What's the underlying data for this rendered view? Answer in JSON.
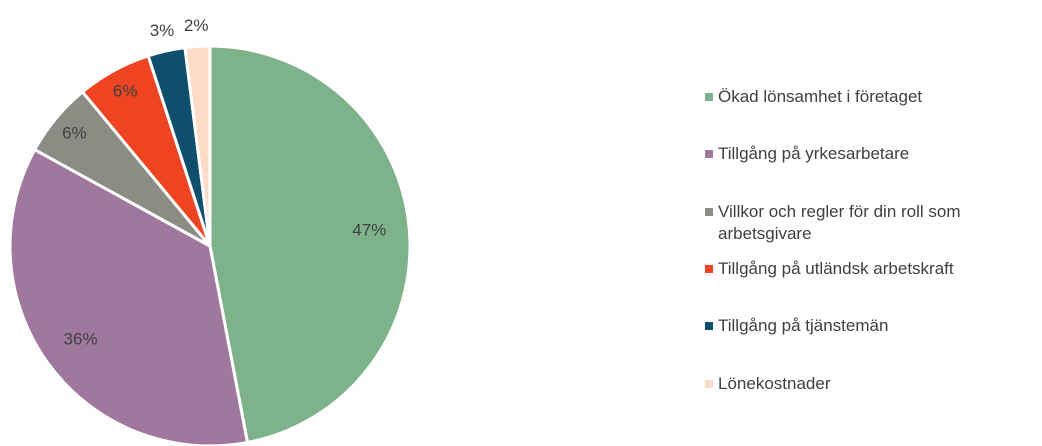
{
  "chart_data": {
    "type": "pie",
    "categories": [
      "Ökad lönsamhet i företaget",
      "Tillgång på yrkesarbetare",
      "Villkor och regler för din roll som arbetsgivare",
      "Tillgång på utländsk arbetskraft",
      "Tillgång på tjänstemän",
      "Lönekostnader"
    ],
    "values": [
      47,
      36,
      6,
      6,
      3,
      2
    ],
    "value_labels": [
      "47%",
      "36%",
      "6%",
      "6%",
      "3%",
      "2%"
    ],
    "colors": [
      "#7db28a",
      "#a0789e",
      "#8c8c85",
      "#ef4421",
      "#0e4f6e",
      "#fcdcc8"
    ],
    "legend": "right"
  }
}
